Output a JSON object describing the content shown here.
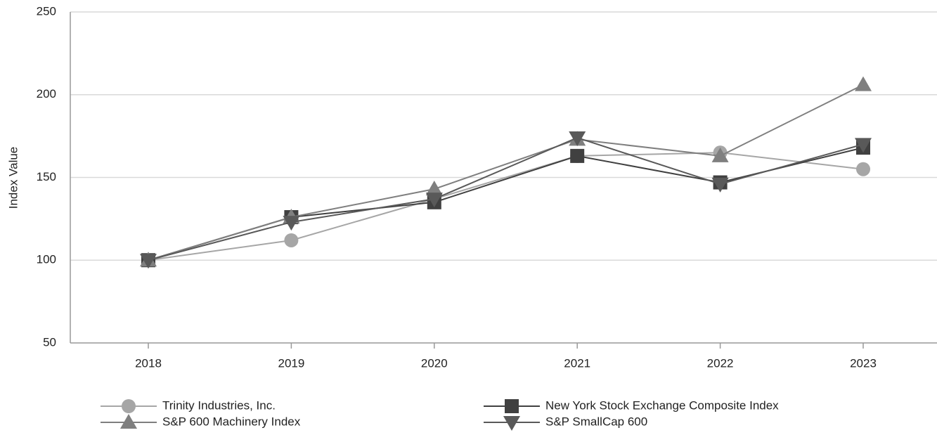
{
  "chart_data": {
    "type": "line",
    "y_label": "Index Value",
    "categories": [
      "2018",
      "2019",
      "2020",
      "2021",
      "2022",
      "2023"
    ],
    "series": [
      {
        "name": "Trinity Industries, Inc.",
        "color": "#a6a6a6",
        "marker": "circle",
        "values": [
          100,
          112,
          137,
          163,
          165,
          155
        ]
      },
      {
        "name": "New York Stock Exchange Composite Index",
        "color": "#404040",
        "marker": "square",
        "values": [
          100,
          126,
          135,
          163,
          147,
          168
        ]
      },
      {
        "name": "S&P 600 Machinery Index",
        "color": "#7f7f7f",
        "marker": "triangle",
        "values": [
          100,
          126,
          143,
          173,
          163,
          206
        ]
      },
      {
        "name": "S&P SmallCap 600",
        "color": "#595959",
        "marker": "triangle-down",
        "values": [
          100,
          123,
          137,
          174,
          146,
          170
        ]
      }
    ],
    "ylim": [
      50,
      250
    ],
    "yticks": [
      50,
      100,
      150,
      200,
      250
    ],
    "grid": true
  }
}
